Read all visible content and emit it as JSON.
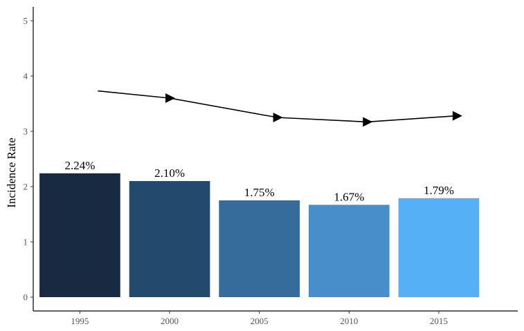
{
  "chart_data": {
    "type": "bar",
    "categories": [
      "1995",
      "2000",
      "2005",
      "2010",
      "2015"
    ],
    "values": [
      2.24,
      2.1,
      1.75,
      1.67,
      1.79
    ],
    "data_labels": [
      "2.24%",
      "2.10%",
      "1.75%",
      "1.67%",
      "1.79%"
    ],
    "bar_colors": [
      "#172a42",
      "#234a6d",
      "#366c9c",
      "#488ecb",
      "#56b0f5"
    ],
    "trend_line": {
      "x": [
        1996,
        2000,
        2006,
        2011,
        2016
      ],
      "y": [
        3.73,
        3.6,
        3.25,
        3.17,
        3.28
      ],
      "marker": "right-pointing triangle",
      "color": "#000000"
    },
    "xticks": [
      1995,
      2000,
      2005,
      2010,
      2015
    ],
    "xtick_labels": [
      "1995",
      "2000",
      "2005",
      "2010",
      "2015"
    ],
    "yticks": [
      0,
      1,
      2,
      3,
      4,
      5
    ],
    "ytick_labels": [
      "0",
      "1",
      "2",
      "3",
      "4",
      "5"
    ],
    "xlim": [
      1992.4,
      2019.4
    ],
    "ylim": [
      -0.25,
      5.25
    ],
    "title": "",
    "xlabel": "",
    "ylabel": "Incidence Rate",
    "grid": false,
    "legend": "none"
  }
}
